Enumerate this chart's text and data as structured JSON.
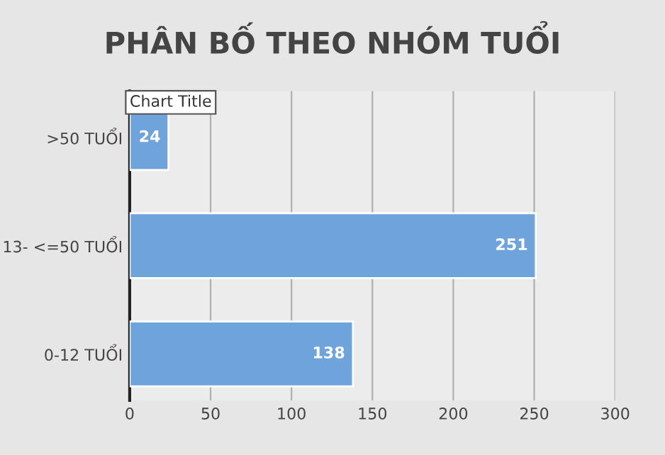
{
  "chart_data": {
    "type": "bar",
    "orientation": "horizontal",
    "title": "PHÂN BỐ THEO NHÓM TUỔI",
    "categories": [
      ">50 TUỔI",
      "13- <=50 TUỔI",
      "0-12 TUỔI"
    ],
    "values": [
      24,
      251,
      138
    ],
    "color": "#6fa3dc",
    "data_labels": true,
    "xlim": [
      0,
      300
    ],
    "xticks": [
      0,
      50,
      100,
      150,
      200,
      250,
      300
    ],
    "grid": "x",
    "legend": false,
    "annotations": [
      "Chart Title"
    ]
  }
}
